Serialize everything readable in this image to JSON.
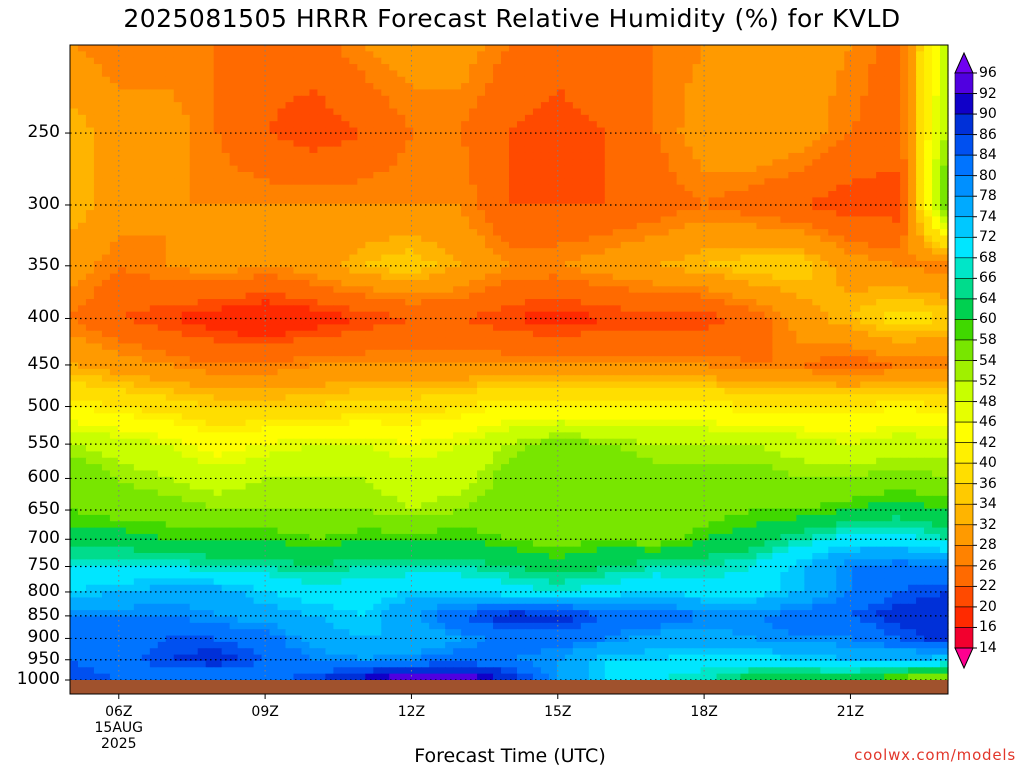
{
  "title": "2025081505 HRRR Forecast Relative Humidity (%) for KVLD",
  "credit": "coolwx.com/models",
  "chart_data": {
    "type": "heatmap",
    "title": "2025081505 HRRR Forecast Relative Humidity (%) for KVLD",
    "xlabel": "Forecast Time (UTC)",
    "ylabel": "",
    "x_hours": [
      5,
      6,
      7,
      8,
      9,
      10,
      11,
      12,
      13,
      14,
      15,
      16,
      17,
      18,
      19,
      20,
      21,
      22,
      23
    ],
    "x_range": [
      5,
      23
    ],
    "y_pressure_levels": [
      1000,
      950,
      900,
      850,
      800,
      750,
      700,
      650,
      600,
      550,
      500,
      450,
      400,
      350,
      300,
      250,
      200
    ],
    "y_range": [
      1000,
      200
    ],
    "y_scale": "log",
    "y_ticks": [
      "250",
      "300",
      "350",
      "400",
      "450",
      "500",
      "550",
      "600",
      "650",
      "700",
      "750",
      "800",
      "850",
      "900",
      "950",
      "1000"
    ],
    "x_ticks": [
      {
        "hour": 6,
        "label": "06Z",
        "sub1": "15AUG",
        "sub2": "2025"
      },
      {
        "hour": 9,
        "label": "09Z"
      },
      {
        "hour": 12,
        "label": "12Z"
      },
      {
        "hour": 15,
        "label": "15Z"
      },
      {
        "hour": 18,
        "label": "18Z"
      },
      {
        "hour": 21,
        "label": "21Z"
      }
    ],
    "grid": true,
    "legend": "right colorbar",
    "colorbar_levels": [
      14,
      16,
      20,
      22,
      26,
      28,
      32,
      34,
      36,
      40,
      42,
      46,
      48,
      52,
      54,
      58,
      60,
      64,
      66,
      68,
      72,
      74,
      78,
      80,
      84,
      86,
      90,
      92,
      96
    ],
    "colorbar_colors": [
      "#ff0090",
      "#f2002e",
      "#ff2a00",
      "#ff4a00",
      "#ff6a00",
      "#ff8200",
      "#ff9a00",
      "#ffb400",
      "#ffca00",
      "#ffde00",
      "#fff000",
      "#ffff00",
      "#e6ff00",
      "#c8ff00",
      "#a0f000",
      "#78e600",
      "#40d800",
      "#00d050",
      "#00dc8c",
      "#00e6c8",
      "#00e6ff",
      "#00c8ff",
      "#00aaff",
      "#0090ff",
      "#0074ff",
      "#0050f0",
      "#0030d8",
      "#1000c8",
      "#5000e0",
      "#7000f0"
    ],
    "values": [
      [
        86,
        84,
        80,
        80,
        82,
        86,
        92,
        96,
        96,
        90,
        78,
        72,
        68,
        66,
        62,
        60,
        60,
        56,
        52
      ],
      [
        84,
        82,
        86,
        88,
        84,
        80,
        78,
        80,
        82,
        80,
        78,
        72,
        72,
        70,
        70,
        72,
        74,
        74,
        72
      ],
      [
        80,
        80,
        84,
        84,
        82,
        76,
        74,
        74,
        78,
        82,
        82,
        80,
        76,
        76,
        78,
        80,
        80,
        84,
        88
      ],
      [
        80,
        80,
        80,
        78,
        76,
        74,
        72,
        78,
        84,
        88,
        88,
        84,
        84,
        80,
        80,
        82,
        84,
        88,
        90
      ],
      [
        72,
        74,
        76,
        76,
        72,
        70,
        70,
        72,
        72,
        70,
        68,
        70,
        72,
        70,
        70,
        74,
        80,
        84,
        86
      ],
      [
        68,
        68,
        68,
        66,
        66,
        64,
        66,
        66,
        66,
        64,
        62,
        64,
        66,
        66,
        68,
        74,
        80,
        82,
        80
      ],
      [
        62,
        62,
        60,
        60,
        60,
        58,
        60,
        60,
        60,
        58,
        56,
        58,
        56,
        60,
        62,
        66,
        70,
        70,
        66
      ],
      [
        58,
        56,
        56,
        54,
        54,
        54,
        54,
        52,
        54,
        56,
        58,
        56,
        54,
        56,
        58,
        58,
        60,
        62,
        60
      ],
      [
        58,
        54,
        52,
        50,
        52,
        52,
        52,
        50,
        50,
        56,
        58,
        58,
        56,
        56,
        56,
        54,
        54,
        56,
        54
      ],
      [
        52,
        50,
        48,
        44,
        46,
        48,
        48,
        46,
        48,
        52,
        56,
        54,
        52,
        52,
        52,
        50,
        48,
        50,
        50
      ],
      [
        42,
        40,
        38,
        36,
        36,
        36,
        38,
        38,
        40,
        42,
        42,
        42,
        42,
        42,
        40,
        40,
        40,
        42,
        40
      ],
      [
        32,
        30,
        28,
        26,
        26,
        28,
        28,
        28,
        28,
        28,
        28,
        28,
        28,
        28,
        26,
        26,
        24,
        26,
        26
      ],
      [
        26,
        22,
        20,
        18,
        16,
        18,
        20,
        22,
        22,
        20,
        18,
        20,
        20,
        20,
        24,
        30,
        34,
        38,
        36
      ],
      [
        30,
        26,
        28,
        30,
        28,
        30,
        34,
        36,
        32,
        28,
        28,
        30,
        32,
        34,
        36,
        36,
        30,
        28,
        26
      ],
      [
        34,
        30,
        28,
        28,
        28,
        28,
        28,
        28,
        28,
        22,
        22,
        22,
        24,
        26,
        24,
        22,
        20,
        20,
        60
      ],
      [
        34,
        30,
        30,
        26,
        22,
        20,
        22,
        26,
        26,
        22,
        20,
        22,
        26,
        30,
        32,
        30,
        26,
        24,
        54
      ],
      [
        28,
        26,
        26,
        26,
        24,
        24,
        28,
        30,
        30,
        26,
        24,
        26,
        26,
        28,
        30,
        30,
        28,
        24,
        52
      ]
    ]
  }
}
